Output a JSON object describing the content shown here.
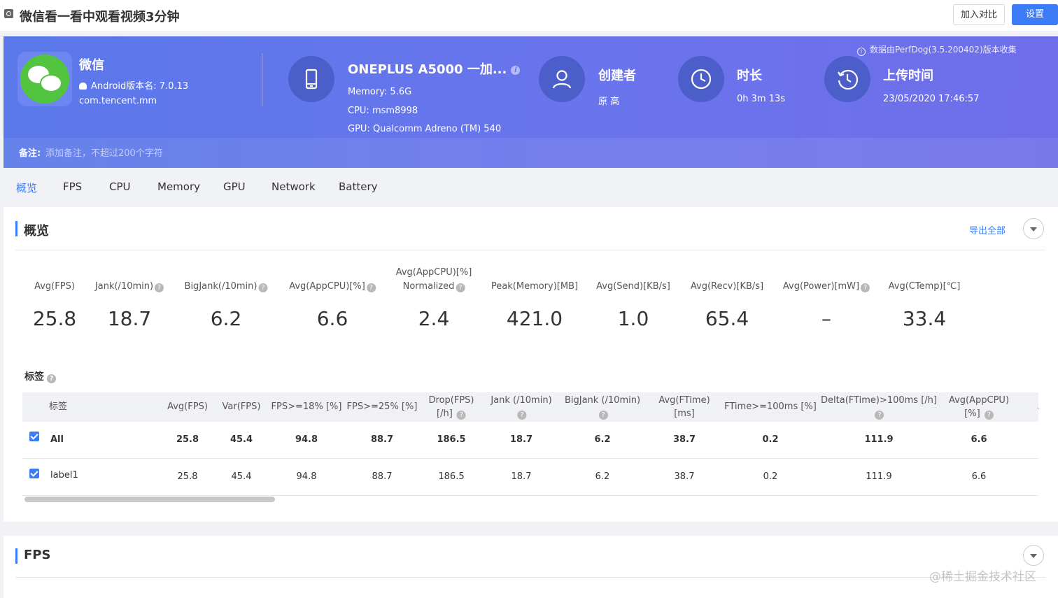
{
  "header": {
    "title": "微信看一看中观看视频3分钟",
    "compare_button": "加入对比",
    "settings_button": "设置"
  },
  "banner": {
    "app_name": "微信",
    "android_version": "Android版本名: 7.0.13",
    "package": "com.tencent.mm",
    "device_name": "ONEPLUS A5000 一加...",
    "memory": "Memory: 5.6G",
    "cpu": "CPU: msm8998",
    "gpu": "GPU: Qualcomm Adreno (TM) 540",
    "creator_title": "创建者",
    "creator_value": "原 高",
    "duration_title": "时长",
    "duration_value": "0h 3m 13s",
    "upload_title": "上传时间",
    "upload_value": "23/05/2020 17:46:57",
    "source_note": "数据由PerfDog(3.5.200402)版本收集",
    "notes_label": "备注:",
    "notes_placeholder": "添加备注，不超过200个字符"
  },
  "tabs": [
    "概览",
    "FPS",
    "CPU",
    "Memory",
    "GPU",
    "Network",
    "Battery"
  ],
  "overview": {
    "title": "概览",
    "export_label": "导出全部",
    "metrics": [
      {
        "label": "Avg(FPS)",
        "value": "25.8"
      },
      {
        "label": "Jank(/10min)",
        "value": "18.7"
      },
      {
        "label": "BigJank(/10min)",
        "value": "6.2"
      },
      {
        "label": "Avg(AppCPU)[%]",
        "value": "6.6"
      },
      {
        "label1": "Avg(AppCPU)[%]",
        "label2": "Normalized",
        "value": "2.4"
      },
      {
        "label": "Peak(Memory)[MB]",
        "value": "421.0"
      },
      {
        "label": "Avg(Send)[KB/s]",
        "value": "1.0"
      },
      {
        "label": "Avg(Recv)[KB/s]",
        "value": "65.4"
      },
      {
        "label": "Avg(Power)[mW]",
        "value": "–"
      },
      {
        "label": "Avg(CTemp)[℃]",
        "value": "33.4"
      }
    ],
    "tags_title": "标签",
    "table": {
      "headers": [
        {
          "l1": "标签"
        },
        {
          "l1": "Avg(FPS)"
        },
        {
          "l1": "Var(FPS)"
        },
        {
          "l1": "FPS>=18% [%]"
        },
        {
          "l1": "FPS>=25% [%]"
        },
        {
          "l1": "Drop(FPS)",
          "l2": "[/h]"
        },
        {
          "l1": "Jank (/10min)"
        },
        {
          "l1": "BigJank (/10min)"
        },
        {
          "l1": "Avg(FTime)",
          "l2": "[ms]"
        },
        {
          "l1": "FTime>=100ms [%]"
        },
        {
          "l1": "Delta(FTime)>100ms [/h]"
        },
        {
          "l1": "Avg(AppCPU)",
          "l2": "[%]"
        },
        {
          "l1": "A"
        }
      ],
      "rows": [
        {
          "label": "All",
          "cells": [
            "25.8",
            "45.4",
            "94.8",
            "88.7",
            "186.5",
            "18.7",
            "6.2",
            "38.7",
            "0.2",
            "111.9",
            "6.6"
          ]
        },
        {
          "label": "label1",
          "cells": [
            "25.8",
            "45.4",
            "94.8",
            "88.7",
            "186.5",
            "18.7",
            "6.2",
            "38.7",
            "0.2",
            "111.9",
            "6.6"
          ]
        }
      ]
    }
  },
  "fps_section": {
    "title": "FPS"
  },
  "watermark": "@稀土掘金技术社区",
  "icons": {
    "question": "?",
    "info": "i"
  },
  "colors": {
    "accent": "#3c7cf6",
    "banner": "#6275eb",
    "icon_circle": "#4c5ec9"
  }
}
